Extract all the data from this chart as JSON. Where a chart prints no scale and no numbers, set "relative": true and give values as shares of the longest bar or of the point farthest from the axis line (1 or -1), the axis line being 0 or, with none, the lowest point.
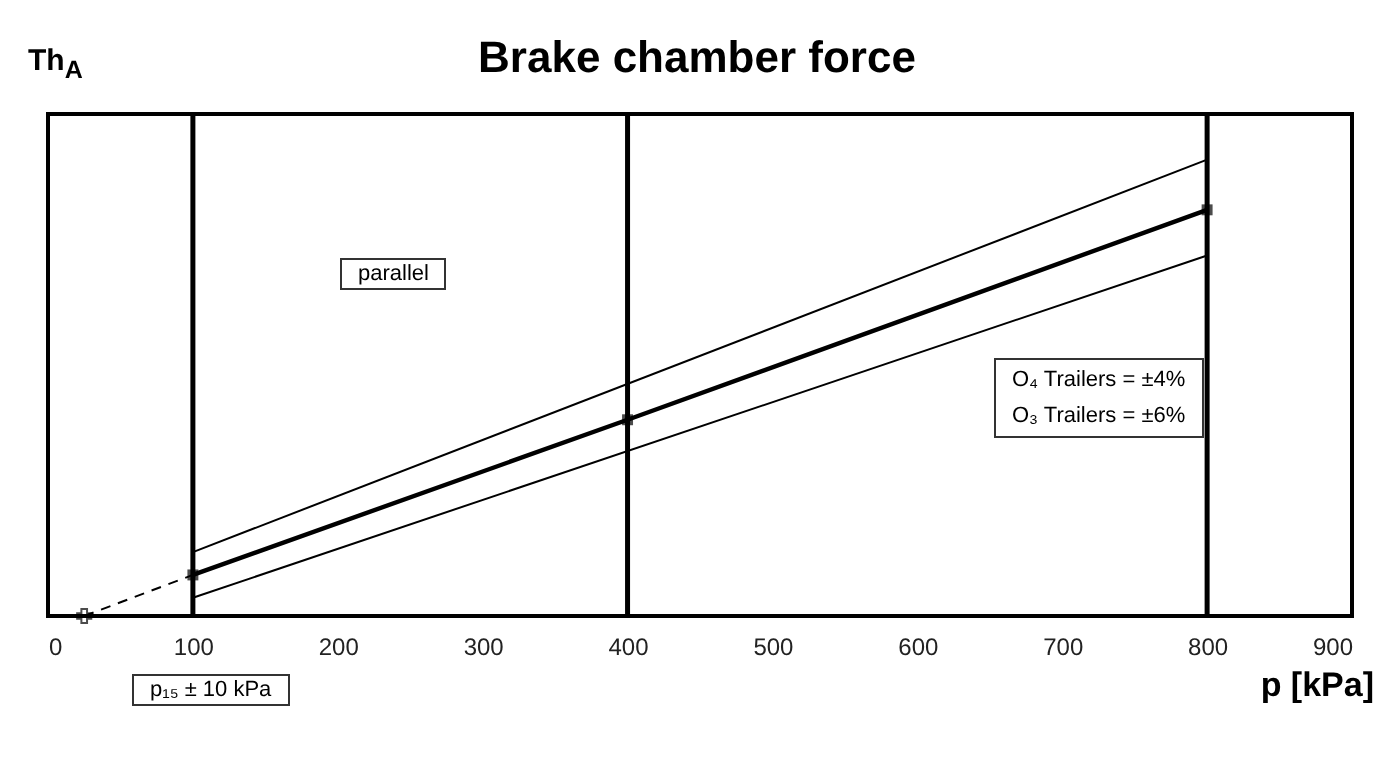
{
  "chart_data": {
    "type": "line",
    "title": "Brake chamber force",
    "xlabel": "p [kPa]",
    "ylabel": "Th$_{A}$",
    "relative": true,
    "xlim": [
      0,
      900
    ],
    "xticks": [
      0,
      100,
      200,
      300,
      400,
      500,
      600,
      700,
      800,
      900
    ],
    "grid": false,
    "series": [
      {
        "color": "#000000",
        "x": [
          100,
          400,
          800
        ],
        "values": [
          0.09,
          0.43,
          0.89
        ],
        "marker": "square"
      },
      {
        "color": "#000000",
        "x": [
          100,
          800
        ],
        "values": [
          0.14,
          1
        ]
      },
      {
        "color": "#000000",
        "x": [
          100,
          800
        ],
        "values": [
          0.04,
          0.79
        ]
      },
      {
        "color": "#000000",
        "x": [
          25,
          100
        ],
        "values": [
          0,
          0.09
        ],
        "line_style": "dashed"
      },
      {
        "type": "scatter",
        "color": "#000000",
        "x": [
          25
        ],
        "values": [
          0
        ],
        "marker": "cross"
      }
    ],
    "ref_lines": [
      {
        "axis": "x",
        "value": 100,
        "color": "#000000"
      },
      {
        "axis": "x",
        "value": 400,
        "color": "#000000"
      },
      {
        "axis": "x",
        "value": 800,
        "color": "#000000"
      }
    ],
    "annotations": [
      "parallel",
      "O₄ Trailers = ±4%",
      "O₃ Trailers = ±6%",
      "p₁₅ ± 10 kPa"
    ]
  }
}
